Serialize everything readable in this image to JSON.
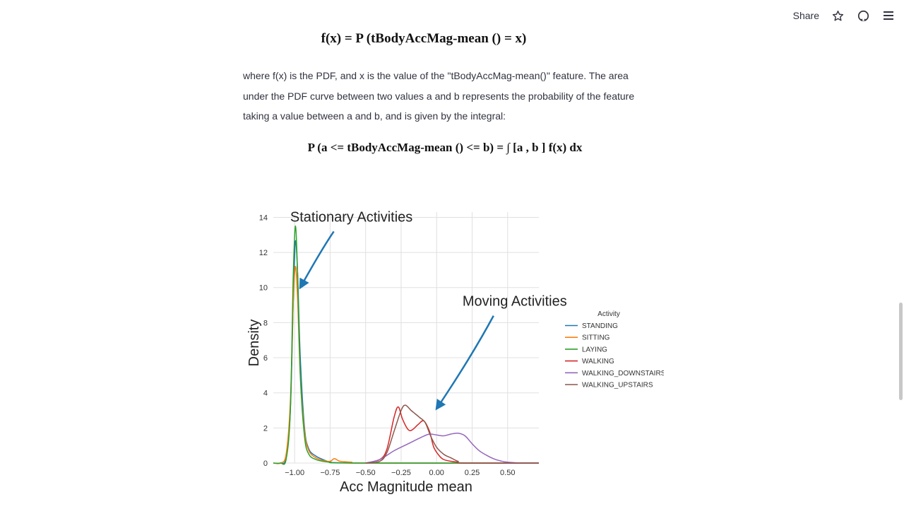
{
  "toolbar": {
    "share_label": "Share",
    "icons": [
      "star-icon",
      "github-icon",
      "menu-icon"
    ]
  },
  "content": {
    "formula1": "f(x) = P (tBodyAccMag-mean () = x)",
    "paragraph": "where f(x) is the PDF, and x is the value of the \"tBodyAccMag-mean()\" feature. The area under the PDF curve between two values a and b represents the probability of the feature taking a value between a and b, and is given by the integral:",
    "formula2": "P (a <= tBodyAccMag-mean () <= b) = ∫ [a , b ] f(x) dx"
  },
  "chart_data": {
    "type": "line",
    "xlabel": "Acc Magnitude mean",
    "ylabel": "Density",
    "xlim": [
      -1.15,
      0.72
    ],
    "ylim": [
      0,
      14.3
    ],
    "xticks": [
      -1.0,
      -0.75,
      -0.5,
      -0.25,
      0.0,
      0.25,
      0.5
    ],
    "xtick_labels": [
      "−1.00",
      "−0.75",
      "−0.50",
      "−0.25",
      "0.00",
      "0.25",
      "0.50"
    ],
    "yticks": [
      0,
      2,
      4,
      6,
      8,
      10,
      12,
      14
    ],
    "grid": true,
    "legend": {
      "title": "Activity",
      "position": "right"
    },
    "annotations": [
      {
        "text": "Stationary Activities",
        "x": -0.6,
        "y": 14.0,
        "arrow_to": [
          -0.96,
          10.0
        ]
      },
      {
        "text": "Moving Activities",
        "x": 0.55,
        "y": 9.2,
        "arrow_to": [
          0.0,
          3.1
        ]
      }
    ],
    "series": [
      {
        "name": "STANDING",
        "color": "#1f77b4",
        "x": [
          -1.15,
          -1.1,
          -1.06,
          -1.03,
          -1.01,
          -0.995,
          -0.98,
          -0.96,
          -0.93,
          -0.9,
          -0.85,
          -0.8,
          -0.75,
          -0.7,
          -0.6,
          -0.5,
          0.72
        ],
        "y": [
          0,
          0,
          0.3,
          3.0,
          9.0,
          12.6,
          11.0,
          6.0,
          2.0,
          0.8,
          0.4,
          0.2,
          0.05,
          0.02,
          0,
          0,
          0
        ]
      },
      {
        "name": "SITTING",
        "color": "#ff7f0e",
        "x": [
          -1.15,
          -1.1,
          -1.06,
          -1.03,
          -1.01,
          -0.995,
          -0.98,
          -0.96,
          -0.93,
          -0.9,
          -0.85,
          -0.8,
          -0.75,
          -0.72,
          -0.68,
          -0.6,
          -0.5,
          0.72
        ],
        "y": [
          0,
          0,
          0.5,
          3.5,
          9.0,
          11.2,
          9.5,
          5.0,
          1.8,
          0.7,
          0.3,
          0.15,
          0.1,
          0.25,
          0.1,
          0.05,
          0,
          0
        ]
      },
      {
        "name": "LAYING",
        "color": "#2ca02c",
        "x": [
          -1.15,
          -1.1,
          -1.06,
          -1.03,
          -1.01,
          -0.995,
          -0.98,
          -0.96,
          -0.93,
          -0.9,
          -0.85,
          -0.8,
          -0.75,
          -0.6,
          0.72
        ],
        "y": [
          0,
          0,
          0.2,
          3.0,
          10.5,
          13.5,
          11.0,
          5.0,
          1.5,
          0.5,
          0.2,
          0.1,
          0.05,
          0,
          0
        ]
      },
      {
        "name": "WALKING",
        "color": "#d62728",
        "x": [
          -0.5,
          -0.4,
          -0.35,
          -0.3,
          -0.27,
          -0.24,
          -0.2,
          -0.17,
          -0.13,
          -0.09,
          -0.05,
          -0.02,
          0.02,
          0.05,
          0.1,
          0.15,
          0.2,
          0.72
        ],
        "y": [
          0,
          0.2,
          0.8,
          2.6,
          3.2,
          2.5,
          1.9,
          1.9,
          2.2,
          2.4,
          1.8,
          0.9,
          0.4,
          0.2,
          0.1,
          0.05,
          0,
          0
        ]
      },
      {
        "name": "WALKING_DOWNSTAIRS",
        "color": "#9467bd",
        "x": [
          -0.5,
          -0.4,
          -0.3,
          -0.2,
          -0.1,
          -0.05,
          0.0,
          0.05,
          0.1,
          0.15,
          0.2,
          0.25,
          0.3,
          0.35,
          0.4,
          0.45,
          0.5,
          0.6,
          0.72
        ],
        "y": [
          0,
          0.2,
          0.7,
          1.1,
          1.5,
          1.65,
          1.6,
          1.55,
          1.65,
          1.7,
          1.55,
          1.1,
          0.7,
          0.45,
          0.25,
          0.12,
          0.05,
          0,
          0
        ]
      },
      {
        "name": "WALKING_UPSTAIRS",
        "color": "#8c564b",
        "x": [
          -0.5,
          -0.4,
          -0.35,
          -0.3,
          -0.25,
          -0.22,
          -0.18,
          -0.15,
          -0.12,
          -0.08,
          -0.04,
          0.0,
          0.05,
          0.1,
          0.15,
          0.2,
          0.72
        ],
        "y": [
          0,
          0.1,
          0.6,
          1.8,
          3.0,
          3.3,
          3.0,
          2.8,
          2.6,
          2.3,
          1.5,
          0.9,
          0.5,
          0.3,
          0.1,
          0,
          0
        ]
      }
    ]
  }
}
